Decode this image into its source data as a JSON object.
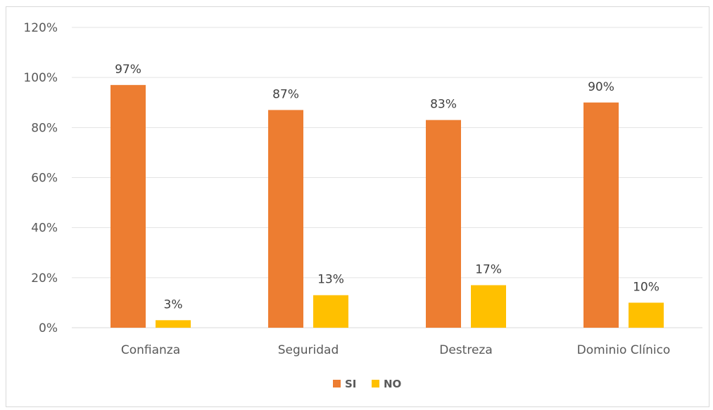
{
  "chart_data": {
    "type": "bar",
    "categories": [
      "Confianza",
      "Seguridad",
      "Destreza",
      "Dominio Clínico"
    ],
    "series": [
      {
        "name": "SI",
        "values": [
          97,
          87,
          83,
          90
        ],
        "labels": [
          "97%",
          "87%",
          "83%",
          "90%"
        ],
        "color": "#ED7D31"
      },
      {
        "name": "NO",
        "values": [
          3,
          13,
          17,
          10
        ],
        "labels": [
          "3%",
          "13%",
          "17%",
          "10%"
        ],
        "color": "#FFC000"
      }
    ],
    "ylim": [
      0,
      120
    ],
    "yticks": [
      0,
      20,
      40,
      60,
      80,
      100,
      120
    ],
    "ytick_labels": [
      "0%",
      "20%",
      "40%",
      "60%",
      "80%",
      "100%",
      "120%"
    ],
    "grid": true,
    "legend_position": "bottom",
    "title": "",
    "xlabel": "",
    "ylabel": ""
  }
}
